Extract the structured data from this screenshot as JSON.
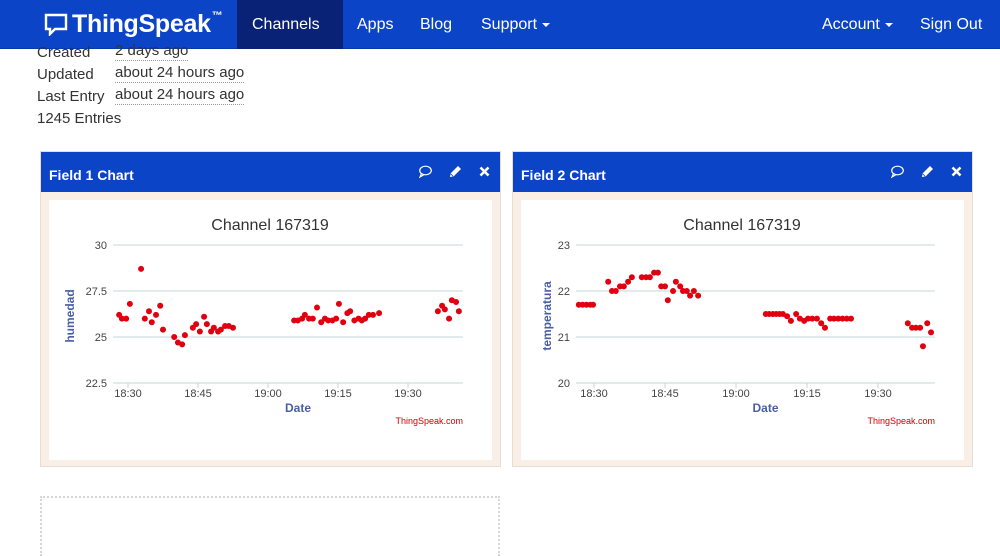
{
  "navbar": {
    "brand": "ThingSpeak",
    "brand_tm": "™",
    "items": [
      {
        "label": "Channels",
        "dropdown": true,
        "active": true
      },
      {
        "label": "Apps",
        "dropdown": false
      },
      {
        "label": "Blog",
        "dropdown": false
      },
      {
        "label": "Support",
        "dropdown": true
      }
    ],
    "right_items": [
      {
        "label": "Account",
        "dropdown": true
      },
      {
        "label": "Sign Out",
        "dropdown": false
      }
    ]
  },
  "channel_info": {
    "created_label": "Created",
    "created_value": "2 days ago",
    "updated_label": "Updated",
    "updated_value": "about 24 hours ago",
    "last_entry_label": "Last Entry",
    "last_entry_value": "about 24 hours ago",
    "entries": "1245 Entries"
  },
  "panels": [
    {
      "title": "Field 1 Chart",
      "icons": [
        "comment-icon",
        "pencil-icon",
        "close-icon"
      ]
    },
    {
      "title": "Field 2 Chart",
      "icons": [
        "comment-icon",
        "pencil-icon",
        "close-icon"
      ]
    }
  ],
  "colors": {
    "brand_blue": "#0c44c8",
    "nav_active": "#0a2275",
    "point_color": "#e0000f",
    "axis_title_color": "#4a5ea8",
    "credit_color": "#cc0000"
  },
  "chart_data": [
    {
      "type": "scatter",
      "title": "Channel 167319",
      "xlabel": "Date",
      "ylabel": "humedad",
      "credit": "ThingSpeak.com",
      "x_unit": "minutes after 18:30",
      "x_ticks": [
        "18:30",
        "18:45",
        "19:00",
        "19:15",
        "19:30"
      ],
      "y_ticks": [
        "30",
        "27.5",
        "25",
        "22.5"
      ],
      "ylim": [
        22.5,
        30
      ],
      "xlim": [
        -3.2,
        71.8
      ],
      "grid": true,
      "points": [
        [
          -1.9,
          26.2
        ],
        [
          -1.3,
          26.0
        ],
        [
          -0.4,
          26.0
        ],
        [
          0.4,
          26.8
        ],
        [
          2.8,
          28.7
        ],
        [
          3.6,
          26.0
        ],
        [
          4.5,
          26.4
        ],
        [
          5.1,
          25.8
        ],
        [
          6.0,
          26.2
        ],
        [
          6.9,
          26.7
        ],
        [
          7.5,
          25.4
        ],
        [
          9.9,
          25.0
        ],
        [
          10.7,
          24.7
        ],
        [
          11.6,
          24.6
        ],
        [
          12.2,
          25.1
        ],
        [
          13.9,
          25.5
        ],
        [
          14.6,
          25.7
        ],
        [
          15.4,
          25.3
        ],
        [
          16.3,
          26.1
        ],
        [
          16.9,
          25.7
        ],
        [
          17.8,
          25.3
        ],
        [
          18.4,
          25.5
        ],
        [
          19.3,
          25.3
        ],
        [
          19.9,
          25.4
        ],
        [
          20.8,
          25.6
        ],
        [
          21.6,
          25.6
        ],
        [
          22.5,
          25.5
        ],
        [
          35.6,
          25.9
        ],
        [
          36.4,
          25.9
        ],
        [
          37.3,
          26.0
        ],
        [
          37.9,
          26.2
        ],
        [
          38.8,
          26.0
        ],
        [
          39.6,
          26.0
        ],
        [
          40.5,
          26.6
        ],
        [
          41.4,
          25.8
        ],
        [
          42.2,
          26.0
        ],
        [
          42.9,
          25.9
        ],
        [
          43.8,
          25.9
        ],
        [
          44.6,
          26.0
        ],
        [
          45.2,
          26.8
        ],
        [
          46.1,
          25.8
        ],
        [
          47.0,
          26.3
        ],
        [
          47.6,
          26.4
        ],
        [
          48.5,
          25.9
        ],
        [
          49.4,
          26.0
        ],
        [
          50.1,
          25.9
        ],
        [
          50.8,
          26.0
        ],
        [
          51.6,
          26.2
        ],
        [
          52.5,
          26.2
        ],
        [
          53.8,
          26.3
        ],
        [
          66.4,
          26.4
        ],
        [
          67.3,
          26.7
        ],
        [
          67.9,
          26.5
        ],
        [
          68.8,
          26.0
        ],
        [
          69.4,
          27.0
        ],
        [
          70.3,
          26.9
        ],
        [
          70.9,
          26.4
        ]
      ]
    },
    {
      "type": "scatter",
      "title": "Channel 167319",
      "xlabel": "Date",
      "ylabel": "temperatura",
      "credit": "ThingSpeak.com",
      "x_unit": "minutes after 18:30",
      "x_ticks": [
        "18:30",
        "18:45",
        "19:00",
        "19:15",
        "19:30"
      ],
      "y_ticks": [
        "23",
        "22",
        "21",
        "20"
      ],
      "ylim": [
        20,
        23
      ],
      "xlim": [
        -3.8,
        72.0
      ],
      "grid": true,
      "points": [
        [
          -3.2,
          21.7
        ],
        [
          -2.4,
          21.7
        ],
        [
          -1.6,
          21.7
        ],
        [
          -0.8,
          21.7
        ],
        [
          -0.2,
          21.7
        ],
        [
          3.0,
          22.2
        ],
        [
          3.8,
          22.0
        ],
        [
          4.6,
          22.0
        ],
        [
          5.5,
          22.1
        ],
        [
          6.3,
          22.1
        ],
        [
          7.2,
          22.2
        ],
        [
          8.0,
          22.3
        ],
        [
          10.1,
          22.3
        ],
        [
          11.0,
          22.3
        ],
        [
          11.8,
          22.3
        ],
        [
          12.7,
          22.4
        ],
        [
          13.5,
          22.4
        ],
        [
          14.2,
          22.1
        ],
        [
          15.0,
          22.1
        ],
        [
          15.6,
          21.8
        ],
        [
          16.7,
          22.0
        ],
        [
          17.3,
          22.2
        ],
        [
          18.2,
          22.1
        ],
        [
          18.8,
          22.0
        ],
        [
          19.6,
          22.0
        ],
        [
          20.3,
          21.9
        ],
        [
          21.1,
          22.0
        ],
        [
          22.0,
          21.9
        ],
        [
          36.3,
          21.5
        ],
        [
          37.0,
          21.5
        ],
        [
          37.8,
          21.5
        ],
        [
          38.5,
          21.5
        ],
        [
          39.2,
          21.5
        ],
        [
          39.9,
          21.5
        ],
        [
          40.8,
          21.45
        ],
        [
          41.6,
          21.35
        ],
        [
          42.7,
          21.5
        ],
        [
          43.5,
          21.4
        ],
        [
          44.4,
          21.35
        ],
        [
          45.2,
          21.4
        ],
        [
          46.1,
          21.4
        ],
        [
          47.1,
          21.4
        ],
        [
          48.0,
          21.3
        ],
        [
          48.8,
          21.2
        ],
        [
          49.9,
          21.4
        ],
        [
          50.7,
          21.4
        ],
        [
          51.6,
          21.4
        ],
        [
          52.5,
          21.4
        ],
        [
          53.4,
          21.4
        ],
        [
          54.3,
          21.4
        ],
        [
          66.3,
          21.3
        ],
        [
          67.2,
          21.2
        ],
        [
          68.0,
          21.2
        ],
        [
          68.9,
          21.2
        ],
        [
          69.5,
          20.8
        ],
        [
          70.4,
          21.3
        ],
        [
          71.2,
          21.1
        ]
      ]
    }
  ]
}
